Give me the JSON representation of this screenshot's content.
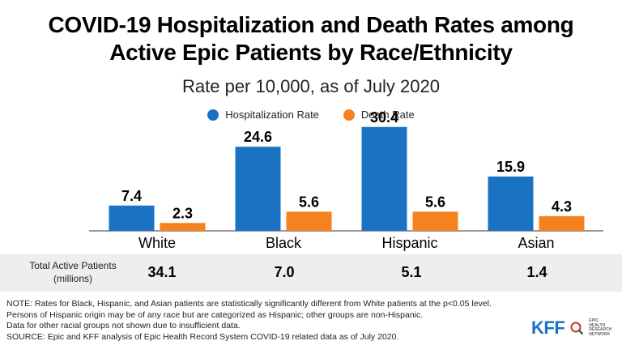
{
  "title_line1": "COVID-19 Hospitalization and Death Rates among",
  "title_line2": "Active Epic Patients by Race/Ethnicity",
  "subtitle": "Rate per 10,000, as of July 2020",
  "colors": {
    "hospitalization": "#1a73c2",
    "death": "#f5821f",
    "band": "#eeeeee"
  },
  "chart_data": {
    "type": "bar",
    "categories": [
      "White",
      "Black",
      "Hispanic",
      "Asian"
    ],
    "series": [
      {
        "name": "Hospitalization Rate",
        "values": [
          7.4,
          24.6,
          30.4,
          15.9
        ]
      },
      {
        "name": "Death Rate",
        "values": [
          2.3,
          5.6,
          5.6,
          4.3
        ]
      }
    ],
    "ylim": [
      0,
      32
    ]
  },
  "table": {
    "label_line1": "Total Active Patients",
    "label_line2": "(millions)",
    "values": [
      "34.1",
      "7.0",
      "5.1",
      "1.4"
    ]
  },
  "notes": [
    "NOTE: Rates for Black, Hispanic, and Asian patients are statistically significantly different from White patients at the p<0.05 level.",
    "Persons of Hispanic origin may be of any race but are categorized as Hispanic; other groups are non-Hispanic.",
    "Data for other racial groups not shown due to insufficient data.",
    "SOURCE: Epic and KFF analysis of Epic Health Record System COVID-19 related data as of July 2020."
  ],
  "logo": {
    "kff": "KFF",
    "ehrn": [
      "EPIC",
      "HEALTH",
      "RESEARCH",
      "NETWORK"
    ]
  }
}
